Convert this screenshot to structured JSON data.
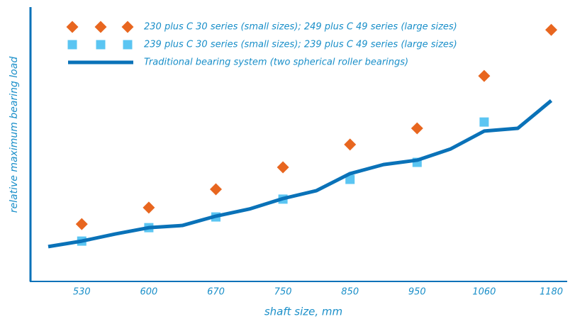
{
  "chart_data": {
    "type": "line",
    "x_label": "shaft size, mm",
    "y_label": "relative maximum bearing load",
    "categories": [
      null,
      "530",
      null,
      "600",
      null,
      "670",
      null,
      "750",
      null,
      "850",
      null,
      "950",
      null,
      "1060",
      null,
      "1180"
    ],
    "ylim": [
      0,
      100
    ],
    "series": [
      {
        "name": "230 plus C 30 series (small sizes); 249 plus C 49 series (large sizes)",
        "color": "#e8661f",
        "style": "diamond",
        "values": [
          null,
          20.9,
          null,
          26.9,
          null,
          33.6,
          null,
          41.6,
          null,
          49.9,
          null,
          55.8,
          null,
          74.9,
          null,
          91.7
        ]
      },
      {
        "name": "239 plus C 30 series (small sizes); 239 plus C 49 series (large sizes)",
        "color": "#5bc5f2",
        "style": "square",
        "values": [
          null,
          14.7,
          null,
          19.6,
          null,
          23.5,
          null,
          30.0,
          null,
          37.2,
          null,
          43.4,
          null,
          58.1,
          null,
          null
        ]
      },
      {
        "name": "Traditional bearing system (two spherical roller bearings)",
        "color": "#0a72b8",
        "style": "line",
        "values": [
          12.7,
          14.7,
          17.3,
          19.6,
          20.4,
          23.8,
          26.4,
          30.2,
          33.1,
          39.3,
          42.6,
          44.2,
          48.3,
          54.8,
          55.8,
          65.9
        ]
      }
    ]
  }
}
